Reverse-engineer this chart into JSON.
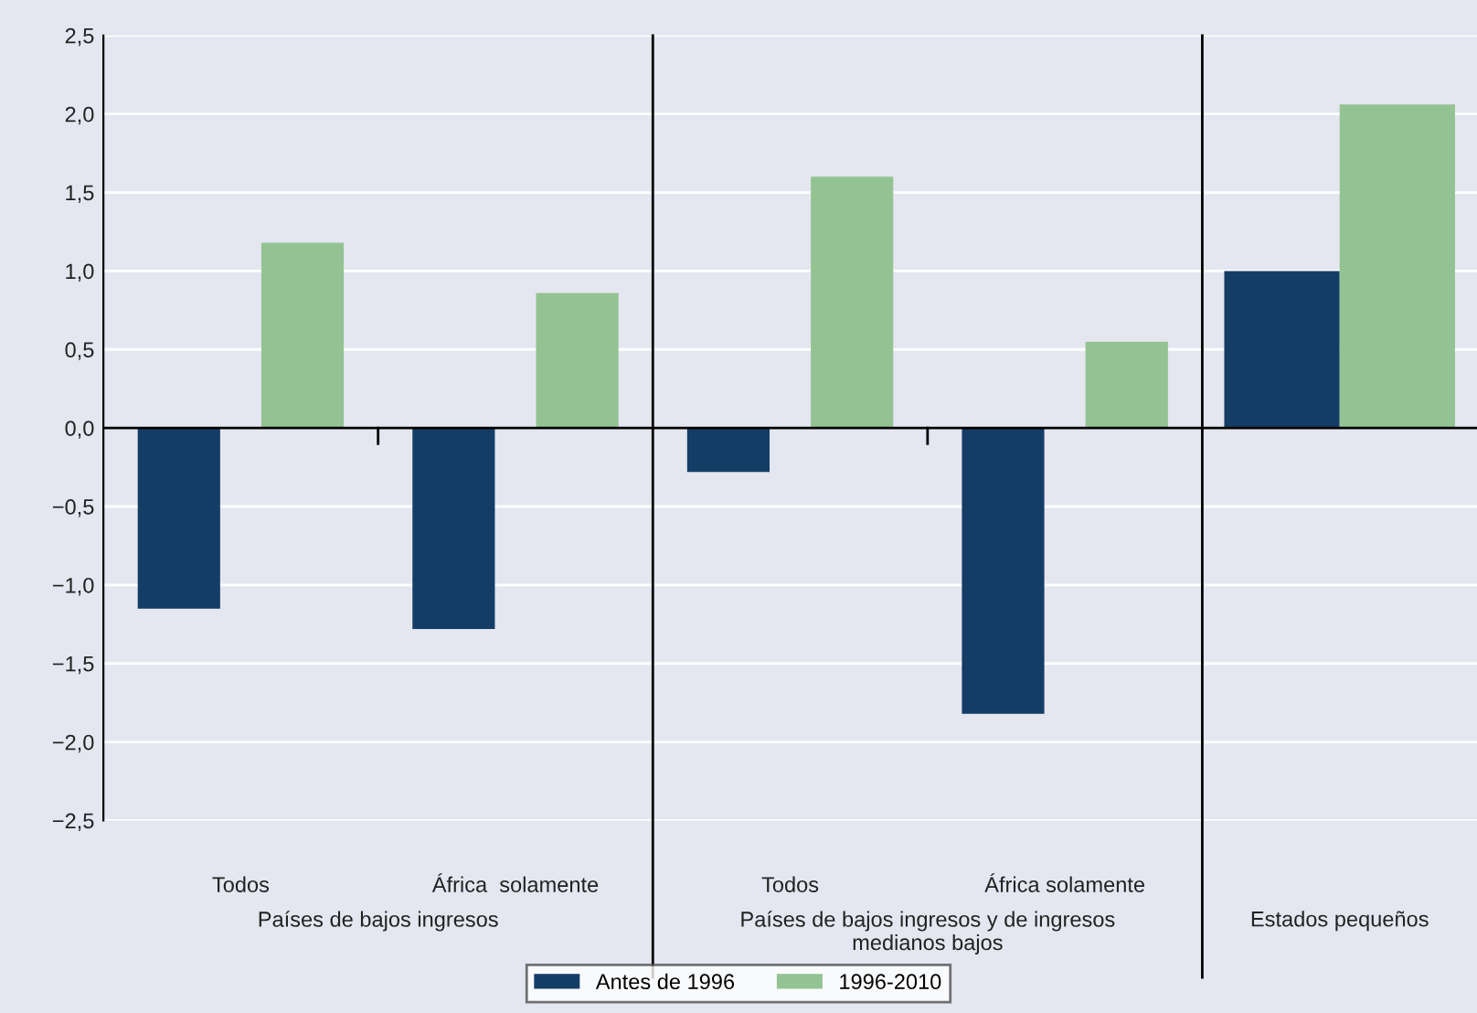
{
  "chart_data": {
    "type": "bar",
    "categories": [
      "Todos",
      "África  solamente",
      "Todos",
      "África solamente",
      null
    ],
    "series": [
      {
        "name": "Antes de 1996",
        "color": "#143d66",
        "values": [
          -1.15,
          -1.28,
          -0.28,
          -1.82,
          1.0
        ]
      },
      {
        "name": "1996-2010",
        "color": "#93c393",
        "values": [
          1.18,
          0.86,
          1.6,
          0.55,
          2.06
        ]
      }
    ],
    "annotations": [
      "Países de bajos ingresos",
      "Países de bajos ingresos y de ingresos\nmedianos bajos",
      "Estados pequeños"
    ],
    "ylim": [
      -2.5,
      2.5
    ],
    "yticks": [
      {
        "value": -2.5,
        "label": "−2,5"
      },
      {
        "value": -2.0,
        "label": "−2,0"
      },
      {
        "value": -1.5,
        "label": "−1,5"
      },
      {
        "value": -1.0,
        "label": "−1,0"
      },
      {
        "value": -0.5,
        "label": "−0,5"
      },
      {
        "value": 0.0,
        "label": "0,0"
      },
      {
        "value": 0.5,
        "label": "0,5"
      },
      {
        "value": 1.0,
        "label": "1,0"
      },
      {
        "value": 1.5,
        "label": "1,5"
      },
      {
        "value": 2.0,
        "label": "2,0"
      },
      {
        "value": 2.5,
        "label": "2,5"
      }
    ],
    "grid": "y",
    "legend": "bottom"
  }
}
